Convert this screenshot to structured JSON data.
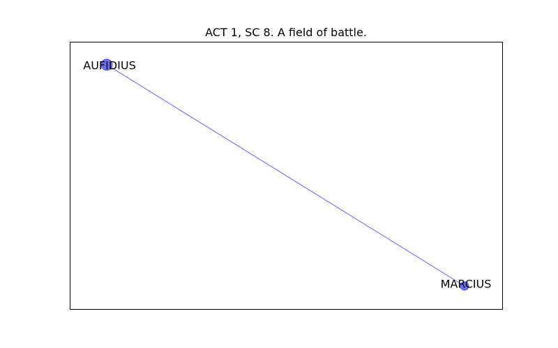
{
  "graph": {
    "title": "ACT 1, SC 8. A field of battle.",
    "colors": {
      "node": "#6f6ff2",
      "node_stroke": "#5656e6",
      "edge": "#7b7bf5",
      "frame": "#000000"
    },
    "nodes": [
      {
        "id": "aufidius",
        "label": "AUFIDIUS"
      },
      {
        "id": "marcius",
        "label": "MARCIUS"
      }
    ],
    "edges": [
      {
        "source": "aufidius",
        "target": "marcius"
      }
    ]
  }
}
